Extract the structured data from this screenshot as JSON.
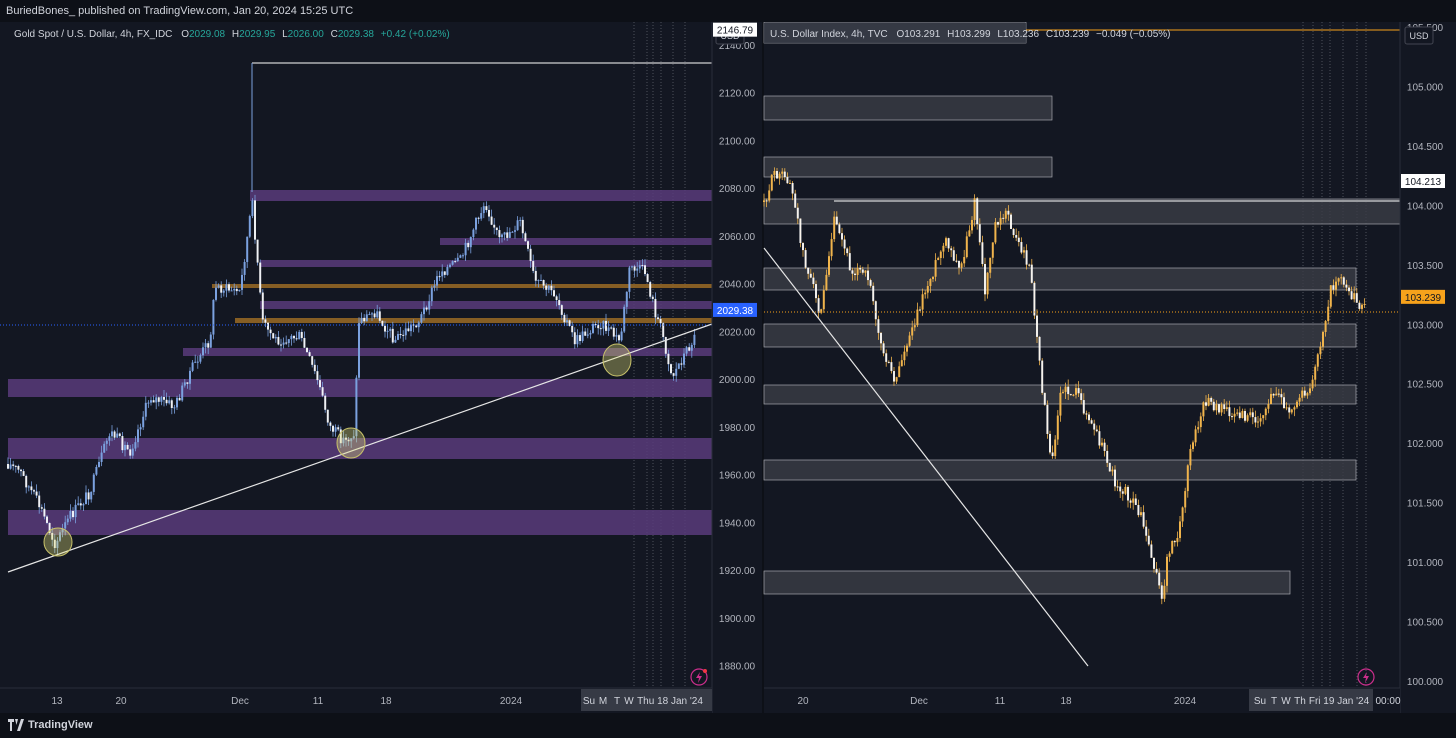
{
  "header": {
    "publish_text": "BuriedBones_ published on TradingView.com, Jan 20, 2024 15:25 UTC"
  },
  "footer": {
    "brand": "TradingView"
  },
  "chart_data": [
    {
      "type": "candlestick",
      "legend": {
        "symbol": "Gold Spot / U.S. Dollar, 4h, FX_IDC",
        "o_label": "O",
        "o": "2029.08",
        "h_label": "H",
        "h": "2029.95",
        "l_label": "L",
        "l": "2026.00",
        "c_label": "C",
        "c": "2029.38",
        "change": "+0.42 (+0.02%)"
      },
      "currency": "USD",
      "y_ticks": [
        "2140.00",
        "2120.00",
        "2100.00",
        "2080.00",
        "2060.00",
        "2040.00",
        "2020.00",
        "2000.00",
        "1980.00",
        "1960.00",
        "1940.00",
        "1920.00",
        "1900.00",
        "1880.00"
      ],
      "y_tick_values": [
        2140,
        2120,
        2100,
        2080,
        2060,
        2040,
        2020,
        2000,
        1980,
        1960,
        1940,
        1920,
        1900,
        1880
      ],
      "ylim": [
        1871,
        2150
      ],
      "price_labels": [
        {
          "text": "2146.79",
          "value": 2146.79,
          "kind": "high"
        },
        {
          "text": "2029.38",
          "value": 2029.38,
          "kind": "last"
        }
      ],
      "x_ticks": [
        "13",
        "20",
        "Dec",
        "11",
        "18",
        "2024"
      ],
      "x_ticks_compressed": [
        "Su",
        "M",
        "T",
        "W",
        "Thu 18 Jan '24"
      ],
      "colors": {
        "candle": "#7ba1df",
        "zone": "#593b7a",
        "orange_zone": "#9b6b24",
        "last": "#2962ff"
      }
    },
    {
      "type": "candlestick",
      "legend": {
        "symbol": "U.S. Dollar Index, 4h, TVC",
        "o_label": "O",
        "o": "103.291",
        "h_label": "H",
        "h": "103.299",
        "l_label": "L",
        "l": "103.236",
        "c_label": "C",
        "c": "103.239",
        "change": "−0.049 (−0.05%)"
      },
      "currency": "USD",
      "y_ticks": [
        "105.500",
        "105.000",
        "104.500",
        "104.000",
        "103.500",
        "103.000",
        "102.500",
        "102.000",
        "101.500",
        "101.000",
        "100.500",
        "100.000"
      ],
      "y_tick_values": [
        105.5,
        105,
        104.5,
        104,
        103.5,
        103,
        102.5,
        102,
        101.5,
        101,
        100.5,
        100
      ],
      "ylim": [
        99.95,
        105.55
      ],
      "price_labels": [
        {
          "text": "104.213",
          "value": 104.213,
          "kind": "high"
        },
        {
          "text": "103.239",
          "value": 103.239,
          "kind": "last"
        }
      ],
      "x_ticks": [
        "20",
        "Dec",
        "11",
        "18",
        "2024"
      ],
      "x_ticks_compressed": [
        "Su",
        "T",
        "W",
        "Th",
        "Fri 19 Jan '24",
        "00:00"
      ],
      "colors": {
        "candle": "#f0b44c",
        "zone": "#3a3d46",
        "last": "#f7a21b"
      }
    }
  ]
}
